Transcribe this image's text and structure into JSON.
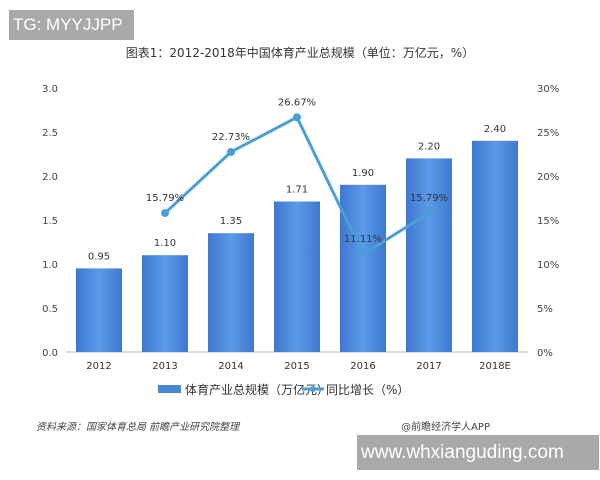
{
  "watermark_top": "TG: MYYJJPP",
  "watermark_bottom": "www.whxianguding.com",
  "chart_data": {
    "type": "bar+line",
    "title": "图表1：2012-2018年中国体育产业总规模（单位：万亿元，%）",
    "categories": [
      "2012",
      "2013",
      "2014",
      "2015",
      "2016",
      "2017",
      "2018E"
    ],
    "series": [
      {
        "name": "体育产业总规模（万亿元）",
        "type": "bar",
        "axis": "left",
        "values": [
          0.95,
          1.1,
          1.35,
          1.71,
          1.9,
          2.2,
          2.4
        ],
        "labels": [
          "0.95",
          "1.10",
          "1.35",
          "1.71",
          "1.90",
          "2.20",
          "2.40"
        ],
        "color": "#4a86d8"
      },
      {
        "name": "同比增长（%）",
        "type": "line",
        "axis": "right",
        "values": [
          null,
          15.79,
          22.73,
          26.67,
          11.11,
          15.79,
          null
        ],
        "labels": [
          "",
          "15.79%",
          "22.73%",
          "26.67%",
          "11.11%",
          "15.79%",
          ""
        ],
        "color": "#4a9fd4"
      }
    ],
    "left_axis": {
      "ylim": [
        0,
        3.0
      ],
      "ticks": [
        "0.0",
        "0.5",
        "1.0",
        "1.5",
        "2.0",
        "2.5",
        "3.0"
      ]
    },
    "right_axis": {
      "ylim": [
        0,
        30
      ],
      "ticks": [
        "0%",
        "5%",
        "10%",
        "15%",
        "20%",
        "25%",
        "30%"
      ]
    },
    "grid": false,
    "legend": "bottom"
  },
  "source": "资料来源：国家体育总局 前瞻产业研究院整理",
  "credit": "@前瞻经济学人APP"
}
